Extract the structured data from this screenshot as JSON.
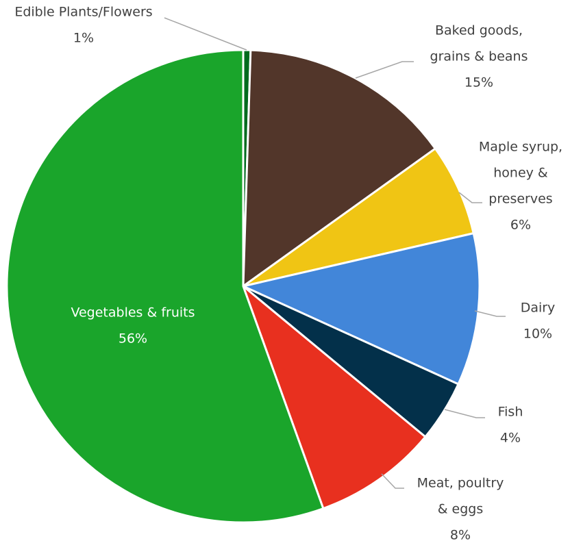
{
  "chart_data": {
    "type": "pie",
    "title": "",
    "legend": "none",
    "start_angle_deg": 0,
    "direction": "clockwise",
    "slices": [
      {
        "label": "Edible Plants/Flowers",
        "label_lines": [
          "Edible Plants/Flowers"
        ],
        "percent_label": "1%",
        "value": 0.5,
        "color": "#006b1e",
        "label_placement": "outside"
      },
      {
        "label": "Baked goods, grains & beans",
        "label_lines": [
          "Baked goods,",
          "grains & beans"
        ],
        "percent_label": "15%",
        "value": 14.6,
        "color": "#52362a",
        "label_placement": "outside"
      },
      {
        "label": "Maple syrup, honey & preserves",
        "label_lines": [
          "Maple syrup,",
          "honey &",
          "preserves"
        ],
        "percent_label": "6%",
        "value": 6.3,
        "color": "#f0c514",
        "label_placement": "outside"
      },
      {
        "label": "Dairy",
        "label_lines": [
          "Dairy"
        ],
        "percent_label": "10%",
        "value": 10.4,
        "color": "#4286d9",
        "label_placement": "outside"
      },
      {
        "label": "Fish",
        "label_lines": [
          "Fish"
        ],
        "percent_label": "4%",
        "value": 4.2,
        "color": "#03304a",
        "label_placement": "outside"
      },
      {
        "label": "Meat, poultry & eggs",
        "label_lines": [
          "Meat, poultry",
          "& eggs"
        ],
        "percent_label": "8%",
        "value": 8.5,
        "color": "#e8301f",
        "label_placement": "outside"
      },
      {
        "label": "Vegetables & fruits",
        "label_lines": [
          "Vegetables & fruits"
        ],
        "percent_label": "56%",
        "value": 55.5,
        "color": "#1aa52b",
        "label_placement": "inside"
      }
    ]
  }
}
